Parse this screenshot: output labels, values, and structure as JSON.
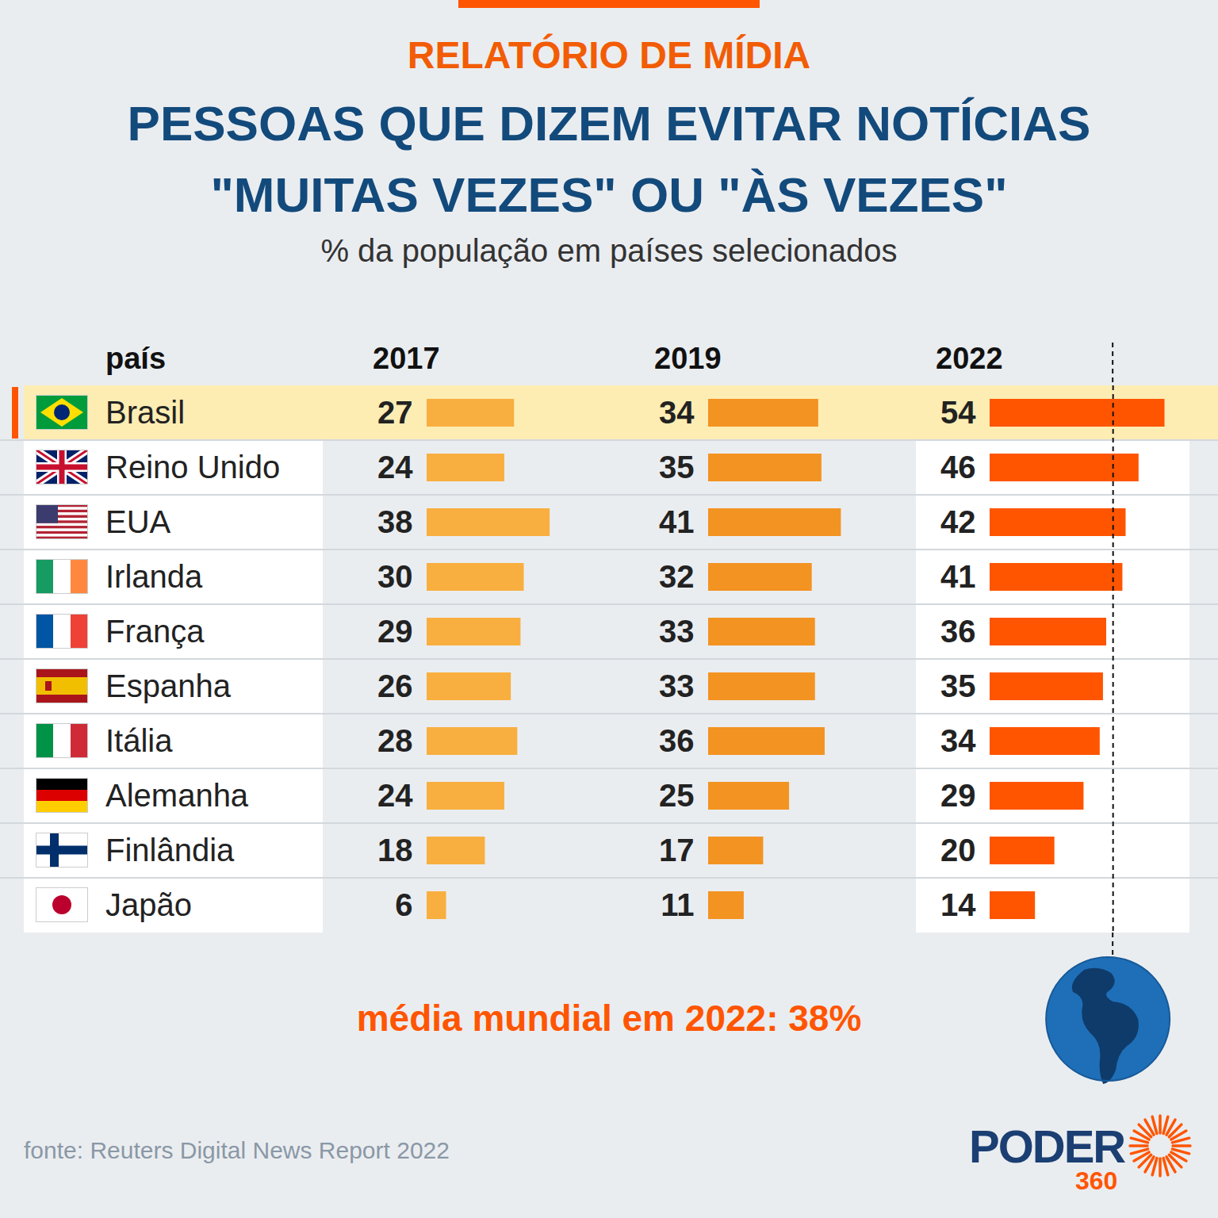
{
  "chart_data": {
    "type": "bar",
    "orientation": "horizontal",
    "kicker": "RELATÓRIO DE MÍDIA",
    "title": [
      "PESSOAS QUE DIZEM EVITAR NOTÍCIAS",
      "\"MUITAS VEZES\" OU \"ÀS VEZES\""
    ],
    "subtitle": "% da população em países selecionados",
    "category_label": "país",
    "categories": [
      "Brasil",
      "Reino Unido",
      "EUA",
      "Irlanda",
      "França",
      "Espanha",
      "Itália",
      "Alemanha",
      "Finlândia",
      "Japão"
    ],
    "series": [
      {
        "name": "2017",
        "color": "#f8af3f",
        "values": [
          27,
          24,
          38,
          30,
          29,
          26,
          28,
          24,
          18,
          6
        ]
      },
      {
        "name": "2019",
        "color": "#f39322",
        "values": [
          34,
          35,
          41,
          32,
          33,
          33,
          36,
          25,
          17,
          11
        ]
      },
      {
        "name": "2022",
        "color": "#ff5500",
        "values": [
          54,
          46,
          42,
          41,
          36,
          35,
          34,
          29,
          20,
          14
        ]
      }
    ],
    "xlim": [
      0,
      60
    ],
    "data_labels": true,
    "tick_labels": false,
    "grid": false,
    "annotations": [
      {
        "series": "2022",
        "value": 38,
        "label": "média mundial em 2022: 38%"
      }
    ],
    "source": "fonte: Reuters Digital News Report 2022",
    "logo": {
      "text": "PODER",
      "subtext": "360"
    }
  }
}
